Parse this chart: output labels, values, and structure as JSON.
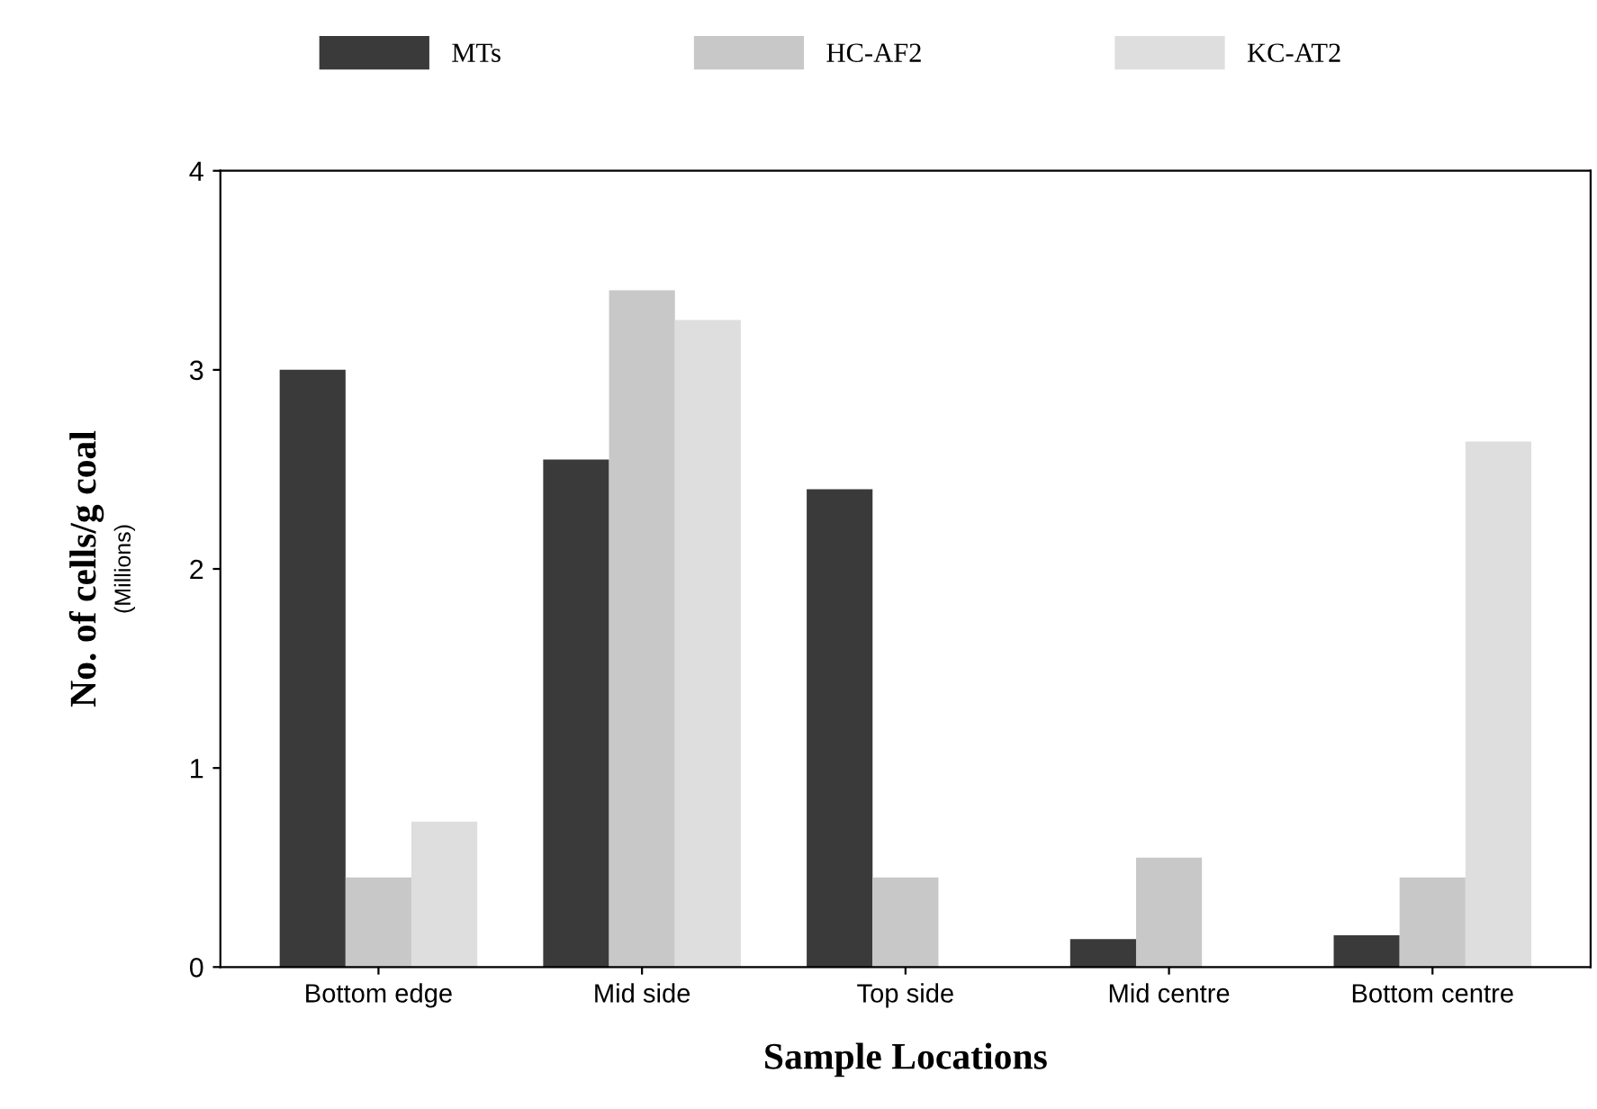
{
  "chart_data": {
    "type": "bar",
    "xlabel": "Sample Locations",
    "ylabel": "No. of cells/g coal",
    "annotations": [
      "(Millions)"
    ],
    "categories": [
      "Bottom edge",
      "Mid side",
      "Top side",
      "Mid centre",
      "Bottom centre"
    ],
    "series": [
      {
        "name": "MTs",
        "color": "#3a3a3a",
        "values": [
          3.0,
          2.55,
          2.4,
          0.14,
          0.16
        ]
      },
      {
        "name": "HC-AF2",
        "color": "#c8c8c8",
        "values": [
          0.45,
          3.4,
          0.45,
          0.55,
          0.45
        ]
      },
      {
        "name": "KC-AT2",
        "color": "#dedede",
        "values": [
          0.73,
          3.25,
          null,
          null,
          2.64
        ]
      }
    ],
    "ylim": [
      0,
      4
    ],
    "yticks": [
      0,
      1,
      2,
      3,
      4
    ],
    "grid": false,
    "legend": "top"
  }
}
